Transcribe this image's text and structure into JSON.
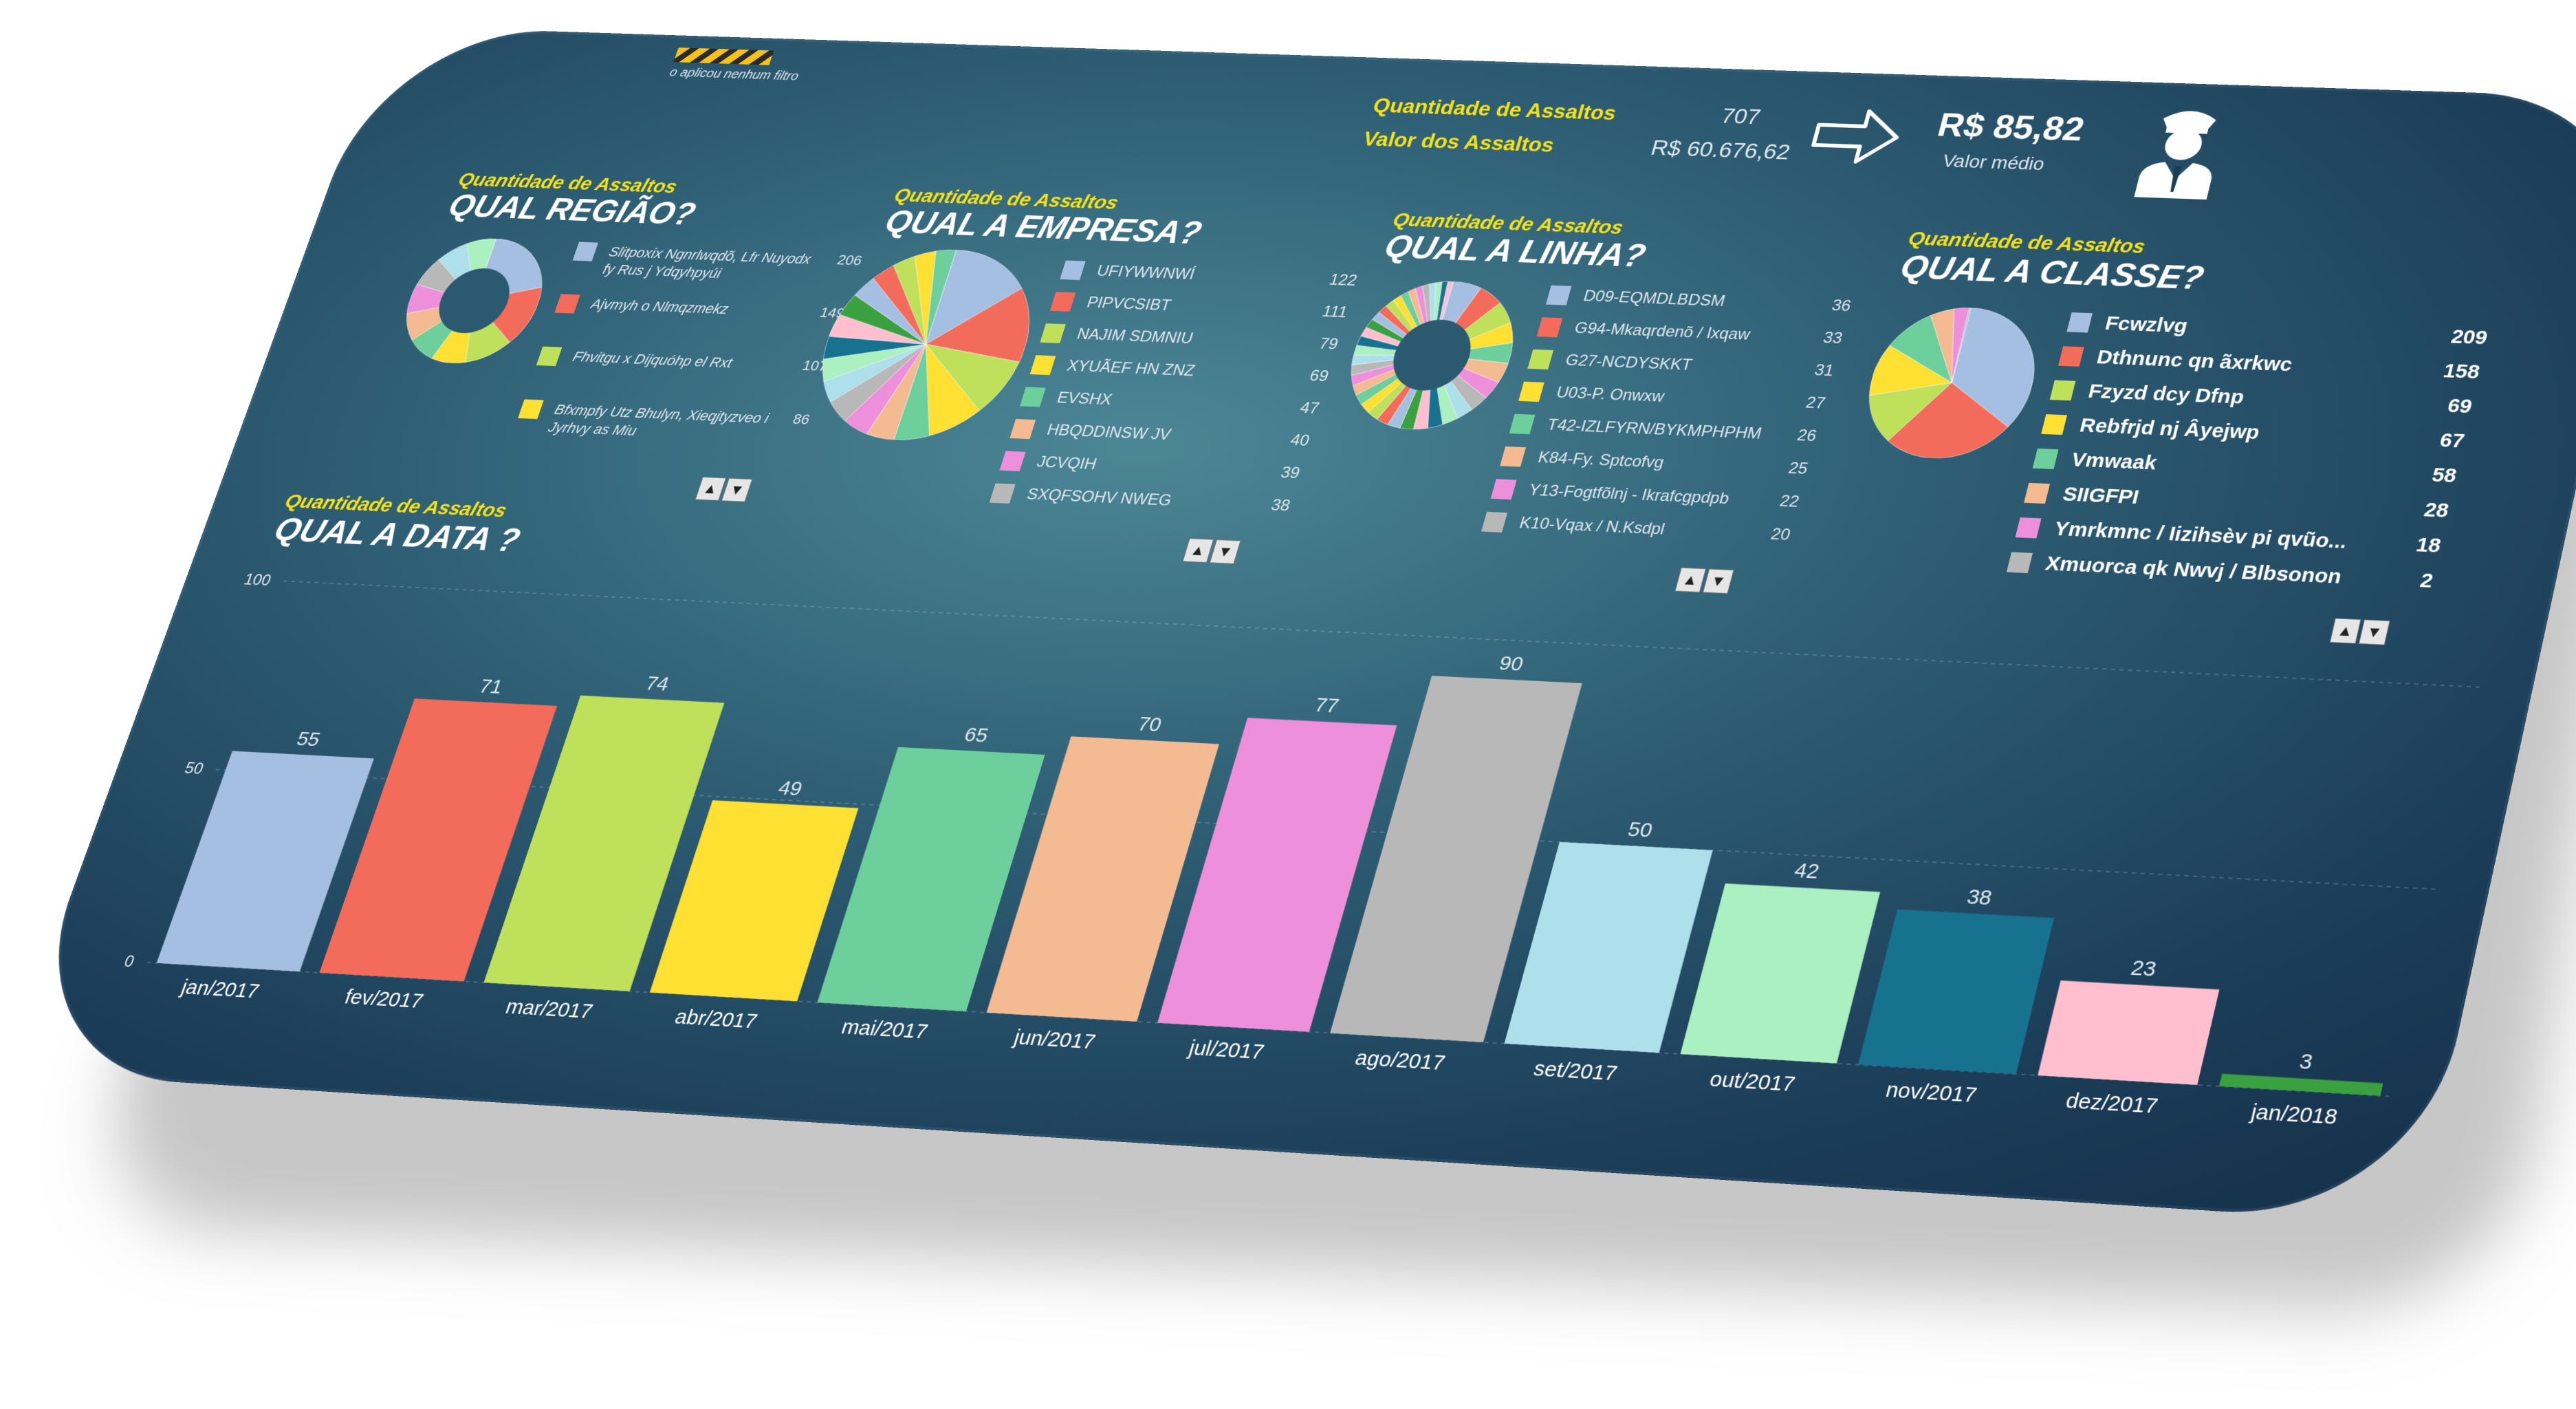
{
  "header": {
    "filter_note": "o aplicou nenhum filtro",
    "qtd_label": "Quantidade de Assaltos",
    "qtd_value": "707",
    "valor_label": "Valor dos Assaltos",
    "valor_value": "R$ 60.676,62",
    "media_value": "R$ 85,82",
    "media_label": "Valor médio",
    "icons": [
      "arrow-right-icon",
      "police-officer-icon"
    ]
  },
  "colors": [
    "#a4bfe1",
    "#f36b5a",
    "#bfe05a",
    "#ffe033",
    "#6ccf9c",
    "#f4bb92",
    "#ee8fdc",
    "#b8b8b8",
    "#aee0ec",
    "#aaf0c0",
    "#17728f",
    "#ffbfcf",
    "#3aa040"
  ],
  "chart_data": [
    {
      "type": "pie",
      "subtitle": "Quantidade de Assaltos",
      "title": "QUAL REGIÃO?",
      "labels": [
        "Slitpoxix Ngnrlwqdõ, Lfr Nuyodx fy Rus j Ydqyhpyúi",
        "Ajvmyh o Nlmqzmekz",
        "Fhvitgu x Dijquóhp el Rxt",
        "Bfxmpfy Utz Bhulyn, Xieqjtyzveo i Jyrhvy as Miu"
      ],
      "values": [
        206,
        149,
        107,
        86
      ]
    },
    {
      "type": "pie",
      "subtitle": "Quantidade de Assaltos",
      "title": "QUAL A EMPRESA?",
      "labels": [
        "UFIYWWNWÍ",
        "PIPVCSIBT",
        "NAJIM SDMNIU",
        "XYUÃEF HN ZNZ",
        "EVSHX",
        "HBQDDINSW JV",
        "JCVQIH",
        "SXQFSOHV NWEG"
      ],
      "values": [
        122,
        111,
        79,
        69,
        47,
        40,
        39,
        38
      ]
    },
    {
      "type": "pie",
      "subtitle": "Quantidade de Assaltos",
      "title": "QUAL A LINHA?",
      "labels": [
        "D09-EQMDLBDSM",
        "G94-Mkaqrdenõ / Ixqaw",
        "G27-NCDYSKKT",
        "U03-P. Onwxw",
        "T42-IZLFYRN/BYKMPHPHM",
        "K84-Fy. Sptcofvg",
        "Y13-Fogtfõlnj - Ikrafcgpdpb",
        "K10-Vqax / N.Ksdpl"
      ],
      "values": [
        36,
        33,
        31,
        27,
        26,
        25,
        22,
        20
      ]
    },
    {
      "type": "pie",
      "subtitle": "Quantidade de Assaltos",
      "title": "QUAL A CLASSE?",
      "labels": [
        "Fcwzlvg",
        "Dthnunc qn ãxrkwc",
        "Fzyzd dcy Dfnp",
        "Rebfrjd nj Âyejwp",
        "Vmwaak",
        "SIIGFPI",
        "Ymrkmnc / Iizihsèv pi qvũo...",
        "Xmuorca qk Nwvj / Blbsonon"
      ],
      "values": [
        209,
        158,
        69,
        67,
        58,
        28,
        18,
        2
      ]
    },
    {
      "type": "bar",
      "subtitle": "Quantidade de Assaltos",
      "title": "QUAL A DATA ?",
      "categories": [
        "jan/2017",
        "fev/2017",
        "mar/2017",
        "abr/2017",
        "mai/2017",
        "jun/2017",
        "jul/2017",
        "ago/2017",
        "set/2017",
        "out/2017",
        "nov/2017",
        "dez/2017",
        "jan/2018"
      ],
      "values": [
        55,
        71,
        74,
        49,
        65,
        70,
        77,
        90,
        50,
        42,
        38,
        23,
        3
      ],
      "yticks": [
        "0",
        "50",
        "100"
      ],
      "ylim": [
        0,
        100
      ]
    }
  ]
}
